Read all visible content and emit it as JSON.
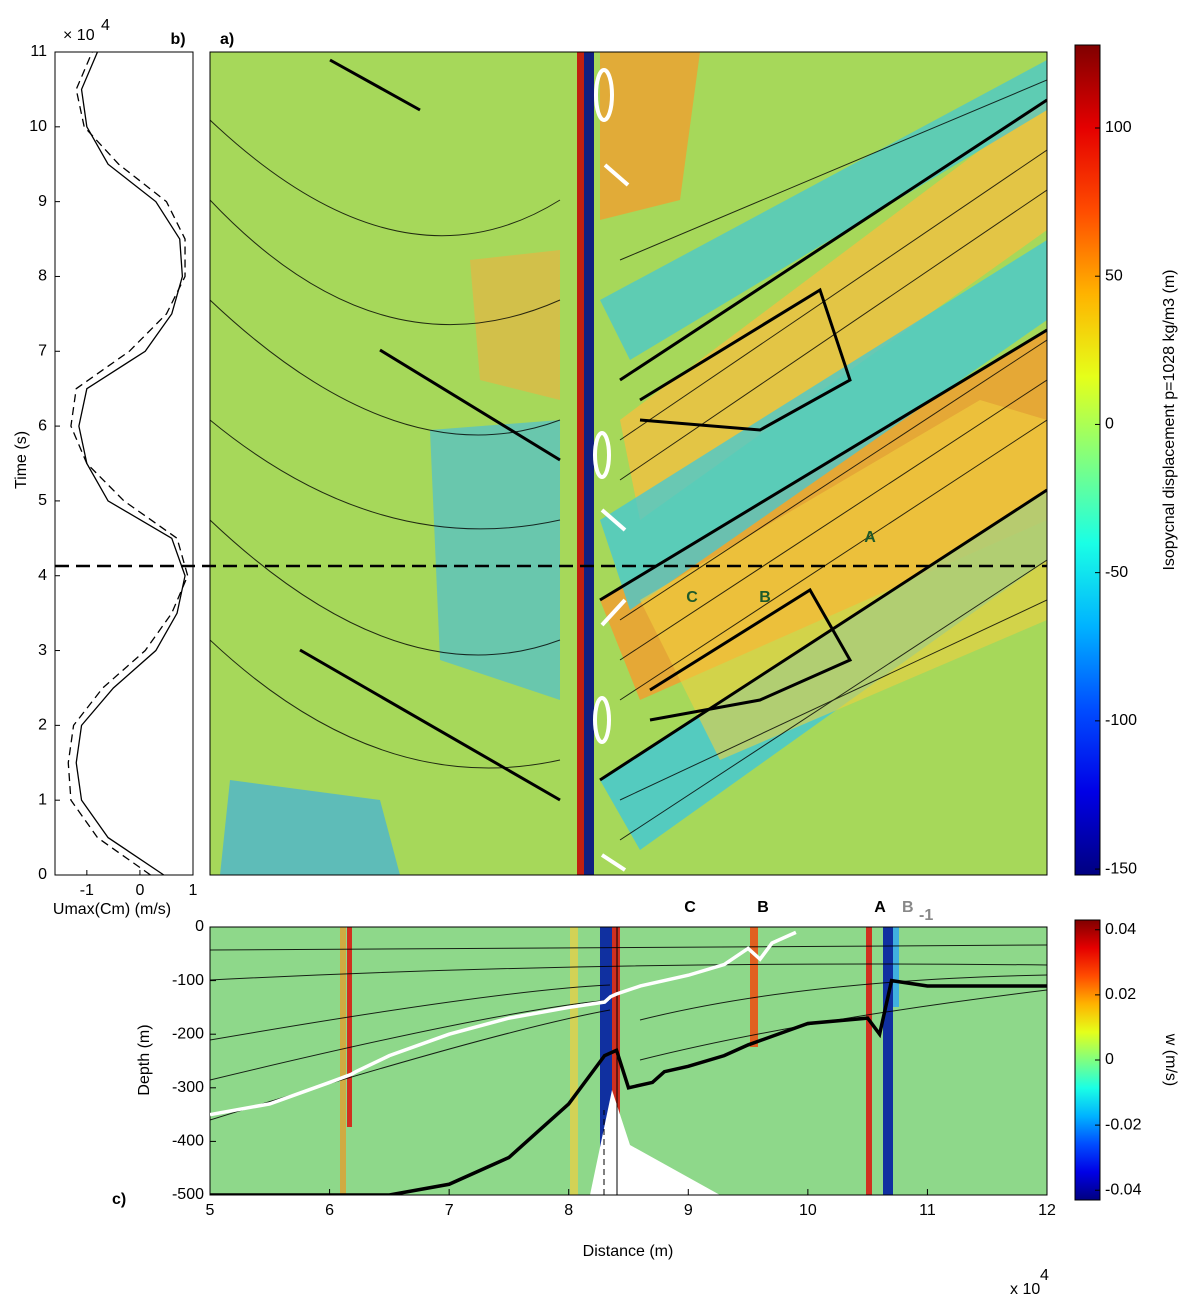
{
  "chart_data": [
    {
      "type": "line",
      "panel_label": "b)",
      "xlabel": "Umax(Cm) (m/s)",
      "ylabel": "Time (s)",
      "y_exponent": "× 10",
      "y_exponent_power": "4",
      "xlim": [
        -1.6,
        1
      ],
      "xticks": [
        -1,
        0,
        1
      ],
      "ylim": [
        0,
        110000
      ],
      "yticks": [
        {
          "value": 0,
          "label": "0"
        },
        {
          "value": 10000,
          "label": "1"
        },
        {
          "value": 20000,
          "label": "2"
        },
        {
          "value": 30000,
          "label": "3"
        },
        {
          "value": 40000,
          "label": "4"
        },
        {
          "value": 50000,
          "label": "5"
        },
        {
          "value": 60000,
          "label": "6"
        },
        {
          "value": 70000,
          "label": "7"
        },
        {
          "value": 80000,
          "label": "8"
        },
        {
          "value": 90000,
          "label": "9"
        },
        {
          "value": 100000,
          "label": "10"
        },
        {
          "value": 110000,
          "label": "11"
        }
      ],
      "x": [
        0,
        5000,
        10000,
        15000,
        20000,
        25000,
        30000,
        35000,
        40000,
        45000,
        50000,
        55000,
        60000,
        65000,
        70000,
        75000,
        80000,
        85000,
        90000,
        95000,
        100000,
        105000,
        110000
      ],
      "series": [
        {
          "color": "#000000",
          "dash": false,
          "values": [
            0.45,
            -0.6,
            -1.1,
            -1.2,
            -1.1,
            -0.5,
            0.3,
            0.7,
            0.85,
            0.6,
            -0.6,
            -1.0,
            -1.15,
            -1.0,
            0.1,
            0.6,
            0.8,
            0.75,
            0.3,
            -0.6,
            -1.0,
            -1.1,
            -0.8
          ]
        },
        {
          "color": "#000000",
          "dash": true,
          "values": [
            0.2,
            -0.8,
            -1.3,
            -1.35,
            -1.25,
            -0.7,
            0.1,
            0.6,
            0.9,
            0.7,
            -0.3,
            -1.0,
            -1.3,
            -1.2,
            -0.2,
            0.5,
            0.85,
            0.85,
            0.5,
            -0.4,
            -1.05,
            -1.2,
            -0.9
          ]
        }
      ],
      "hline": 41300
    },
    {
      "type": "contour",
      "panel_label": "a)",
      "ylim": [
        0,
        110000
      ],
      "hline": 41300,
      "clim": [
        -152,
        128
      ],
      "colorbar_ticks": [
        100,
        50,
        0,
        -50,
        -100,
        -150
      ],
      "colorbar_label": "Isopycnal displacement p=1028 kg/m3 (m)",
      "annotations": [
        "A",
        "B",
        "C"
      ]
    },
    {
      "type": "section",
      "panel_label": "c)",
      "xlabel": "Distance (m)",
      "ylabel": "Depth (m)",
      "x_exponent": "x 10",
      "x_exponent_power": "4",
      "xlim": [
        50000,
        120000
      ],
      "xticks": [
        {
          "value": 50000,
          "label": "5"
        },
        {
          "value": 60000,
          "label": "6"
        },
        {
          "value": 70000,
          "label": "7"
        },
        {
          "value": 80000,
          "label": "8"
        },
        {
          "value": 90000,
          "label": "9"
        },
        {
          "value": 100000,
          "label": "10"
        },
        {
          "value": 110000,
          "label": "11"
        },
        {
          "value": 120000,
          "label": "12"
        }
      ],
      "ylim": [
        -500,
        0
      ],
      "yticks": [
        0,
        -100,
        -200,
        -300,
        -400,
        -500
      ],
      "clim": [
        -0.043,
        0.043
      ],
      "colorbar_ticks": [
        0.04,
        0.02,
        0,
        -0.02,
        -0.04
      ],
      "colorbar_label": "w (m/s)",
      "annotations": [
        "C",
        "B",
        "A"
      ],
      "annotation_sub": {
        "text": "B",
        "subscript": "-1"
      },
      "lines": [
        {
          "color": "#ffffff",
          "x": [
            50000,
            55000,
            60000,
            61800,
            62200,
            65000,
            70000,
            75000,
            80000,
            83000,
            83500,
            84000,
            86000,
            88000,
            90000,
            93000,
            95000,
            96000,
            97000,
            99000
          ],
          "values": [
            -350,
            -330,
            -290,
            -275,
            -270,
            -240,
            -200,
            -170,
            -150,
            -140,
            -130,
            -125,
            -110,
            -100,
            -90,
            -70,
            -40,
            -60,
            -30,
            -10
          ]
        },
        {
          "color": "#000000",
          "x": [
            50000,
            55000,
            60000,
            65000,
            70000,
            75000,
            80000,
            83000,
            84000,
            85000,
            87000,
            88000,
            90000,
            93000,
            95000,
            100000,
            105000,
            106000,
            107000,
            110000,
            120000
          ],
          "values": [
            -500,
            -500,
            -500,
            -500,
            -480,
            -430,
            -330,
            -240,
            -230,
            -300,
            -290,
            -270,
            -260,
            -240,
            -220,
            -180,
            -170,
            -200,
            -100,
            -110,
            -110
          ]
        }
      ]
    }
  ]
}
